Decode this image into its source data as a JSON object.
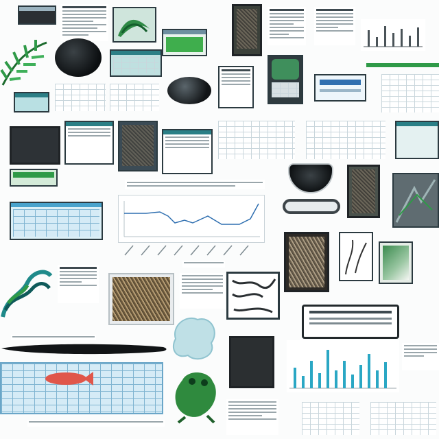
{
  "collage": {
    "background": "#fbfcfc",
    "palette": {
      "screen_border": "#2b3a40",
      "green_accent": "#2f9a48",
      "blue_accent": "#2f6fb0",
      "teal": "#1f8a8a",
      "dark": "#1f2326"
    }
  },
  "line_chart": {
    "type": "line"
  }
}
